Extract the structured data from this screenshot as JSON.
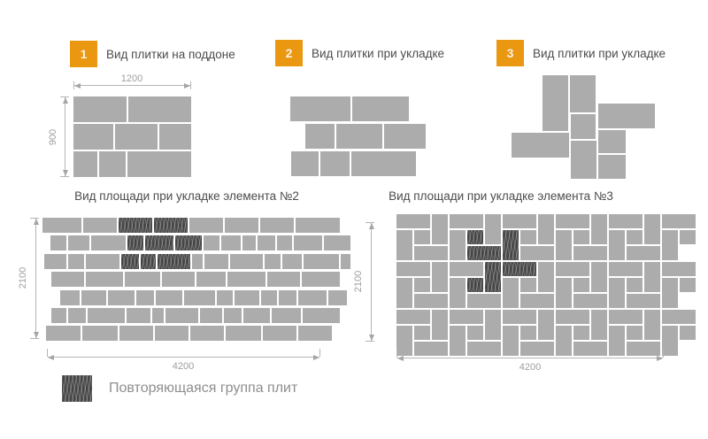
{
  "colors": {
    "tile": "#ACACAC",
    "hatch_bg": "#454545",
    "accent": "#EA9712",
    "heading_text": "#4C4C4C",
    "dimension_text": "#9E9E9E",
    "legend_text": "#8E8E8E"
  },
  "sections": [
    {
      "num": "1",
      "title": "Вид плитки на поддоне"
    },
    {
      "num": "2",
      "title": "Вид плитки при укладке"
    },
    {
      "num": "3",
      "title": "Вид плитки при укладке"
    }
  ],
  "pallet": {
    "width_label": "1200",
    "height_label": "900",
    "rows": [
      [
        46,
        54
      ],
      [
        35,
        37,
        28
      ],
      [
        21,
        23,
        56
      ]
    ]
  },
  "laying2": {
    "rows": [
      {
        "x": 0,
        "tiles": [
          68,
          64
        ]
      },
      {
        "x": 17,
        "tiles": [
          33,
          52,
          47
        ]
      },
      {
        "x": 1,
        "tiles": [
          31,
          33,
          73
        ]
      }
    ]
  },
  "laying3": {
    "tiles": [
      [
        43,
        0,
        29,
        63
      ],
      [
        74,
        0,
        29,
        42
      ],
      [
        106,
        32,
        64,
        28
      ],
      [
        75,
        44,
        28,
        28
      ],
      [
        8,
        65,
        65,
        28
      ],
      [
        106,
        62,
        31,
        26
      ],
      [
        75,
        74,
        29,
        43
      ],
      [
        106,
        90,
        31,
        27
      ]
    ]
  },
  "area2": {
    "title": "Вид площади при укладке элемента №2",
    "height_label": "2100",
    "width_label": "4200",
    "rows": [
      {
        "x": 3,
        "tiles": [
          [
            44,
            0
          ],
          [
            38,
            0
          ],
          [
            38,
            1
          ],
          [
            38,
            1
          ],
          [
            38,
            0
          ],
          [
            38,
            0
          ],
          [
            38,
            0
          ],
          [
            50,
            0
          ]
        ]
      },
      {
        "x": 12,
        "tiles": [
          [
            18,
            0
          ],
          [
            24,
            0
          ],
          [
            39,
            0
          ],
          [
            18,
            1
          ],
          [
            32,
            1
          ],
          [
            30,
            1
          ],
          [
            18,
            0
          ],
          [
            22,
            0
          ],
          [
            15,
            0
          ],
          [
            20,
            0
          ],
          [
            17,
            0
          ],
          [
            32,
            0
          ],
          [
            30,
            0
          ]
        ]
      },
      {
        "x": 5,
        "tiles": [
          [
            25,
            0
          ],
          [
            18,
            0
          ],
          [
            38,
            0
          ],
          [
            20,
            1
          ],
          [
            17,
            1
          ],
          [
            37,
            1
          ],
          [
            12,
            0
          ],
          [
            27,
            0
          ],
          [
            37,
            0
          ],
          [
            18,
            0
          ],
          [
            22,
            0
          ],
          [
            40,
            0
          ],
          [
            11,
            0
          ]
        ]
      },
      {
        "x": 13,
        "tiles": [
          [
            37,
            0
          ],
          [
            42,
            0
          ],
          [
            40,
            0
          ],
          [
            37,
            0
          ],
          [
            33,
            0
          ],
          [
            43,
            0
          ],
          [
            37,
            0
          ],
          [
            43,
            0
          ]
        ]
      },
      {
        "x": 23,
        "tiles": [
          [
            22,
            0
          ],
          [
            28,
            0
          ],
          [
            30,
            0
          ],
          [
            20,
            0
          ],
          [
            30,
            0
          ],
          [
            35,
            0
          ],
          [
            18,
            0
          ],
          [
            28,
            0
          ],
          [
            18,
            0
          ],
          [
            20,
            0
          ],
          [
            32,
            0
          ],
          [
            21,
            0
          ]
        ]
      },
      {
        "x": 13,
        "tiles": [
          [
            17,
            0
          ],
          [
            20,
            0
          ],
          [
            42,
            0
          ],
          [
            27,
            0
          ],
          [
            13,
            0
          ],
          [
            37,
            0
          ],
          [
            25,
            0
          ],
          [
            20,
            0
          ],
          [
            30,
            0
          ],
          [
            33,
            0
          ],
          [
            42,
            0
          ]
        ]
      },
      {
        "x": 7,
        "tiles": [
          [
            39,
            0
          ],
          [
            40,
            0
          ],
          [
            38,
            0
          ],
          [
            38,
            0
          ],
          [
            38,
            0
          ],
          [
            40,
            0
          ],
          [
            38,
            0
          ],
          [
            38,
            0
          ]
        ]
      }
    ]
  },
  "area3": {
    "title": "Вид площади при укладке элемента №3",
    "height_label": "2100",
    "width_label": "4200",
    "pattern": {
      "unit_w": 20,
      "unit_h": 18,
      "gap": 2,
      "cols": 6,
      "rows": 3,
      "max_right": 342
    },
    "hatched": [
      "1,0,S",
      "1,0,H2",
      "2,0,V2",
      "1,1,V1",
      "2,1,H1",
      "1,1,S"
    ]
  },
  "legend": {
    "label": "Повторяющаяся группа плит"
  }
}
